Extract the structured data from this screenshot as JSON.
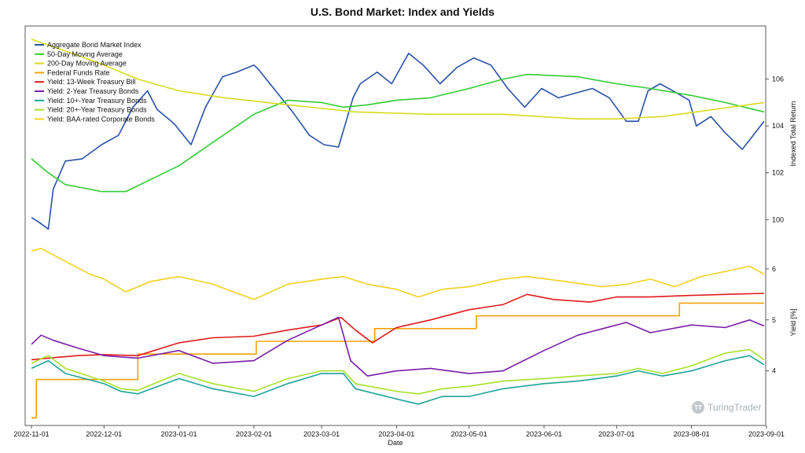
{
  "chart_data": {
    "type": "line",
    "title": "U.S. Bond Market: Index and Yields",
    "xlabel": "Date",
    "x_ticks": [
      "2022-11-01",
      "2022-12-01",
      "2023-01-01",
      "2023-02-01",
      "2023-03-01",
      "2023-04-01",
      "2023-05-01",
      "2023-06-01",
      "2023-07-01",
      "2023-08-01",
      "2023-09-01"
    ],
    "upper_panel": {
      "ylabel": "Indexed Total Return",
      "ylim": [
        98.3,
        108.2
      ],
      "y_ticks": [
        100,
        102,
        104,
        106
      ],
      "series": [
        {
          "name": "Aggregate Bond Market Index",
          "color": "#2a52a8",
          "points": [
            [
              "2022-11-01",
              100.1
            ],
            [
              "2022-11-04",
              99.9
            ],
            [
              "2022-11-08",
              99.6
            ],
            [
              "2022-11-10",
              101.3
            ],
            [
              "2022-11-15",
              102.5
            ],
            [
              "2022-11-22",
              102.6
            ],
            [
              "2022-11-30",
              103.2
            ],
            [
              "2022-12-07",
              103.6
            ],
            [
              "2022-12-13",
              104.8
            ],
            [
              "2022-12-19",
              105.5
            ],
            [
              "2022-12-23",
              104.7
            ],
            [
              "2022-12-30",
              104.1
            ],
            [
              "2023-01-06",
              103.2
            ],
            [
              "2023-01-12",
              104.8
            ],
            [
              "2023-01-19",
              106.1
            ],
            [
              "2023-01-25",
              106.3
            ],
            [
              "2023-02-01",
              106.6
            ],
            [
              "2023-02-03",
              106.4
            ],
            [
              "2023-02-10",
              105.5
            ],
            [
              "2023-02-17",
              104.6
            ],
            [
              "2023-02-24",
              103.6
            ],
            [
              "2023-03-02",
              103.2
            ],
            [
              "2023-03-08",
              103.1
            ],
            [
              "2023-03-14",
              105.2
            ],
            [
              "2023-03-17",
              105.8
            ],
            [
              "2023-03-24",
              106.3
            ],
            [
              "2023-03-30",
              105.8
            ],
            [
              "2023-04-06",
              107.1
            ],
            [
              "2023-04-12",
              106.6
            ],
            [
              "2023-04-19",
              105.8
            ],
            [
              "2023-04-26",
              106.5
            ],
            [
              "2023-05-03",
              106.9
            ],
            [
              "2023-05-10",
              106.6
            ],
            [
              "2023-05-17",
              105.6
            ],
            [
              "2023-05-24",
              104.8
            ],
            [
              "2023-05-31",
              105.6
            ],
            [
              "2023-06-07",
              105.2
            ],
            [
              "2023-06-14",
              105.4
            ],
            [
              "2023-06-21",
              105.6
            ],
            [
              "2023-06-28",
              105.2
            ],
            [
              "2023-07-05",
              104.2
            ],
            [
              "2023-07-10",
              104.2
            ],
            [
              "2023-07-14",
              105.5
            ],
            [
              "2023-07-19",
              105.8
            ],
            [
              "2023-07-26",
              105.4
            ],
            [
              "2023-07-31",
              105.1
            ],
            [
              "2023-08-03",
              104.0
            ],
            [
              "2023-08-09",
              104.4
            ],
            [
              "2023-08-15",
              103.7
            ],
            [
              "2023-08-22",
              103.0
            ],
            [
              "2023-08-25",
              103.4
            ],
            [
              "2023-08-31",
              104.2
            ]
          ]
        },
        {
          "name": "50-Day Moving Average",
          "color": "#33cc33",
          "points": [
            [
              "2022-11-01",
              102.6
            ],
            [
              "2022-11-08",
              102.0
            ],
            [
              "2022-11-15",
              101.5
            ],
            [
              "2022-11-30",
              101.2
            ],
            [
              "2022-12-10",
              101.2
            ],
            [
              "2022-12-20",
              101.7
            ],
            [
              "2023-01-01",
              102.3
            ],
            [
              "2023-01-15",
              103.3
            ],
            [
              "2023-02-01",
              104.5
            ],
            [
              "2023-02-15",
              105.1
            ],
            [
              "2023-03-01",
              105.0
            ],
            [
              "2023-03-10",
              104.8
            ],
            [
              "2023-03-20",
              104.9
            ],
            [
              "2023-04-01",
              105.1
            ],
            [
              "2023-04-15",
              105.2
            ],
            [
              "2023-05-01",
              105.6
            ],
            [
              "2023-05-15",
              106.0
            ],
            [
              "2023-05-25",
              106.2
            ],
            [
              "2023-06-15",
              106.1
            ],
            [
              "2023-07-01",
              105.8
            ],
            [
              "2023-07-15",
              105.6
            ],
            [
              "2023-08-01",
              105.3
            ],
            [
              "2023-08-15",
              105.0
            ],
            [
              "2023-08-31",
              104.6
            ]
          ]
        },
        {
          "name": "200-Day Moving Average",
          "color": "#d8dc1c",
          "points": [
            [
              "2022-11-01",
              107.7
            ],
            [
              "2022-11-15",
              107.2
            ],
            [
              "2022-12-01",
              106.6
            ],
            [
              "2022-12-15",
              106.0
            ],
            [
              "2023-01-01",
              105.5
            ],
            [
              "2023-01-20",
              105.2
            ],
            [
              "2023-02-15",
              104.9
            ],
            [
              "2023-03-15",
              104.6
            ],
            [
              "2023-04-15",
              104.5
            ],
            [
              "2023-05-15",
              104.5
            ],
            [
              "2023-06-15",
              104.3
            ],
            [
              "2023-07-01",
              104.3
            ],
            [
              "2023-07-20",
              104.4
            ],
            [
              "2023-08-10",
              104.7
            ],
            [
              "2023-08-31",
              105.0
            ]
          ]
        }
      ]
    },
    "lower_panel": {
      "ylabel": "Yield [%]",
      "ylim": [
        3.1,
        6.8
      ],
      "y_ticks": [
        4,
        5,
        6
      ],
      "series": [
        {
          "name": "Federal Funds Rate",
          "color": "#f5a20a",
          "step": true,
          "points": [
            [
              "2022-11-01",
              3.08
            ],
            [
              "2022-11-03",
              3.83
            ],
            [
              "2022-12-15",
              4.33
            ],
            [
              "2023-02-02",
              4.58
            ],
            [
              "2023-03-23",
              4.83
            ],
            [
              "2023-05-04",
              5.08
            ],
            [
              "2023-07-27",
              5.33
            ],
            [
              "2023-08-31",
              5.33
            ]
          ]
        },
        {
          "name": "Yield: 13-Week Treasury Bill",
          "color": "#e01b1b",
          "points": [
            [
              "2022-11-01",
              4.22
            ],
            [
              "2022-11-10",
              4.26
            ],
            [
              "2022-11-20",
              4.3
            ],
            [
              "2022-12-01",
              4.32
            ],
            [
              "2022-12-15",
              4.3
            ],
            [
              "2023-01-01",
              4.55
            ],
            [
              "2023-01-15",
              4.65
            ],
            [
              "2023-02-01",
              4.68
            ],
            [
              "2023-02-15",
              4.8
            ],
            [
              "2023-03-01",
              4.9
            ],
            [
              "2023-03-09",
              5.05
            ],
            [
              "2023-03-15",
              4.8
            ],
            [
              "2023-03-22",
              4.55
            ],
            [
              "2023-04-01",
              4.85
            ],
            [
              "2023-04-15",
              5.0
            ],
            [
              "2023-05-01",
              5.2
            ],
            [
              "2023-05-15",
              5.3
            ],
            [
              "2023-05-25",
              5.5
            ],
            [
              "2023-06-05",
              5.4
            ],
            [
              "2023-06-20",
              5.35
            ],
            [
              "2023-07-01",
              5.45
            ],
            [
              "2023-07-15",
              5.45
            ],
            [
              "2023-08-01",
              5.48
            ],
            [
              "2023-08-15",
              5.5
            ],
            [
              "2023-08-31",
              5.52
            ]
          ]
        },
        {
          "name": "Yield: 2-Year Treasury Bonds",
          "color": "#7a1ea8",
          "points": [
            [
              "2022-11-01",
              4.52
            ],
            [
              "2022-11-05",
              4.7
            ],
            [
              "2022-11-10",
              4.6
            ],
            [
              "2022-11-20",
              4.45
            ],
            [
              "2022-12-01",
              4.3
            ],
            [
              "2022-12-15",
              4.25
            ],
            [
              "2023-01-01",
              4.4
            ],
            [
              "2023-01-15",
              4.15
            ],
            [
              "2023-02-01",
              4.2
            ],
            [
              "2023-02-15",
              4.6
            ],
            [
              "2023-03-01",
              4.9
            ],
            [
              "2023-03-08",
              5.05
            ],
            [
              "2023-03-13",
              4.2
            ],
            [
              "2023-03-20",
              3.9
            ],
            [
              "2023-04-01",
              4.0
            ],
            [
              "2023-04-15",
              4.05
            ],
            [
              "2023-05-01",
              3.95
            ],
            [
              "2023-05-15",
              4.0
            ],
            [
              "2023-06-01",
              4.4
            ],
            [
              "2023-06-15",
              4.7
            ],
            [
              "2023-07-05",
              4.95
            ],
            [
              "2023-07-15",
              4.75
            ],
            [
              "2023-08-01",
              4.9
            ],
            [
              "2023-08-15",
              4.85
            ],
            [
              "2023-08-25",
              5.0
            ],
            [
              "2023-08-31",
              4.88
            ]
          ]
        },
        {
          "name": "Yield: 10+-Year Treasury Bonds",
          "color": "#1fa39a",
          "points": [
            [
              "2022-11-01",
              4.05
            ],
            [
              "2022-11-08",
              4.2
            ],
            [
              "2022-11-15",
              3.95
            ],
            [
              "2022-12-01",
              3.75
            ],
            [
              "2022-12-08",
              3.6
            ],
            [
              "2022-12-15",
              3.55
            ],
            [
              "2023-01-01",
              3.85
            ],
            [
              "2023-01-15",
              3.65
            ],
            [
              "2023-02-01",
              3.5
            ],
            [
              "2023-02-15",
              3.75
            ],
            [
              "2023-03-01",
              3.95
            ],
            [
              "2023-03-10",
              3.95
            ],
            [
              "2023-03-15",
              3.65
            ],
            [
              "2023-04-01",
              3.45
            ],
            [
              "2023-04-10",
              3.35
            ],
            [
              "2023-04-20",
              3.5
            ],
            [
              "2023-05-01",
              3.5
            ],
            [
              "2023-05-15",
              3.65
            ],
            [
              "2023-06-01",
              3.75
            ],
            [
              "2023-06-15",
              3.8
            ],
            [
              "2023-07-01",
              3.9
            ],
            [
              "2023-07-10",
              4.0
            ],
            [
              "2023-07-20",
              3.9
            ],
            [
              "2023-08-01",
              4.0
            ],
            [
              "2023-08-15",
              4.2
            ],
            [
              "2023-08-25",
              4.3
            ],
            [
              "2023-08-31",
              4.12
            ]
          ]
        },
        {
          "name": "Yield: 20+-Year Treasury Bonds",
          "color": "#a8e02a",
          "points": [
            [
              "2022-11-01",
              4.15
            ],
            [
              "2022-11-08",
              4.3
            ],
            [
              "2022-11-15",
              4.05
            ],
            [
              "2022-12-01",
              3.8
            ],
            [
              "2022-12-08",
              3.65
            ],
            [
              "2022-12-15",
              3.62
            ],
            [
              "2023-01-01",
              3.95
            ],
            [
              "2023-01-15",
              3.75
            ],
            [
              "2023-02-01",
              3.6
            ],
            [
              "2023-02-15",
              3.85
            ],
            [
              "2023-03-01",
              4.0
            ],
            [
              "2023-03-10",
              4.0
            ],
            [
              "2023-03-15",
              3.75
            ],
            [
              "2023-04-01",
              3.6
            ],
            [
              "2023-04-10",
              3.55
            ],
            [
              "2023-04-20",
              3.65
            ],
            [
              "2023-05-01",
              3.7
            ],
            [
              "2023-05-15",
              3.8
            ],
            [
              "2023-06-01",
              3.85
            ],
            [
              "2023-06-15",
              3.9
            ],
            [
              "2023-07-01",
              3.95
            ],
            [
              "2023-07-10",
              4.05
            ],
            [
              "2023-07-20",
              3.95
            ],
            [
              "2023-08-01",
              4.1
            ],
            [
              "2023-08-15",
              4.35
            ],
            [
              "2023-08-25",
              4.42
            ],
            [
              "2023-08-31",
              4.22
            ]
          ]
        },
        {
          "name": "Yield: BAA-rated Corporate Bonds",
          "color": "#f0d21e",
          "points": [
            [
              "2022-11-01",
              6.35
            ],
            [
              "2022-11-05",
              6.4
            ],
            [
              "2022-11-15",
              6.15
            ],
            [
              "2022-11-25",
              5.9
            ],
            [
              "2022-12-01",
              5.8
            ],
            [
              "2022-12-10",
              5.55
            ],
            [
              "2022-12-20",
              5.75
            ],
            [
              "2023-01-01",
              5.85
            ],
            [
              "2023-01-15",
              5.7
            ],
            [
              "2023-02-01",
              5.4
            ],
            [
              "2023-02-15",
              5.7
            ],
            [
              "2023-03-01",
              5.8
            ],
            [
              "2023-03-10",
              5.85
            ],
            [
              "2023-03-20",
              5.7
            ],
            [
              "2023-04-01",
              5.6
            ],
            [
              "2023-04-10",
              5.45
            ],
            [
              "2023-04-20",
              5.6
            ],
            [
              "2023-05-01",
              5.65
            ],
            [
              "2023-05-15",
              5.8
            ],
            [
              "2023-05-25",
              5.85
            ],
            [
              "2023-06-10",
              5.75
            ],
            [
              "2023-06-25",
              5.65
            ],
            [
              "2023-07-05",
              5.7
            ],
            [
              "2023-07-15",
              5.8
            ],
            [
              "2023-07-25",
              5.65
            ],
            [
              "2023-08-05",
              5.85
            ],
            [
              "2023-08-15",
              5.95
            ],
            [
              "2023-08-25",
              6.05
            ],
            [
              "2023-08-31",
              5.9
            ]
          ]
        }
      ]
    },
    "legend_placement": "top-left"
  },
  "watermark": "TuringTrader",
  "watermark_icon": "TT"
}
